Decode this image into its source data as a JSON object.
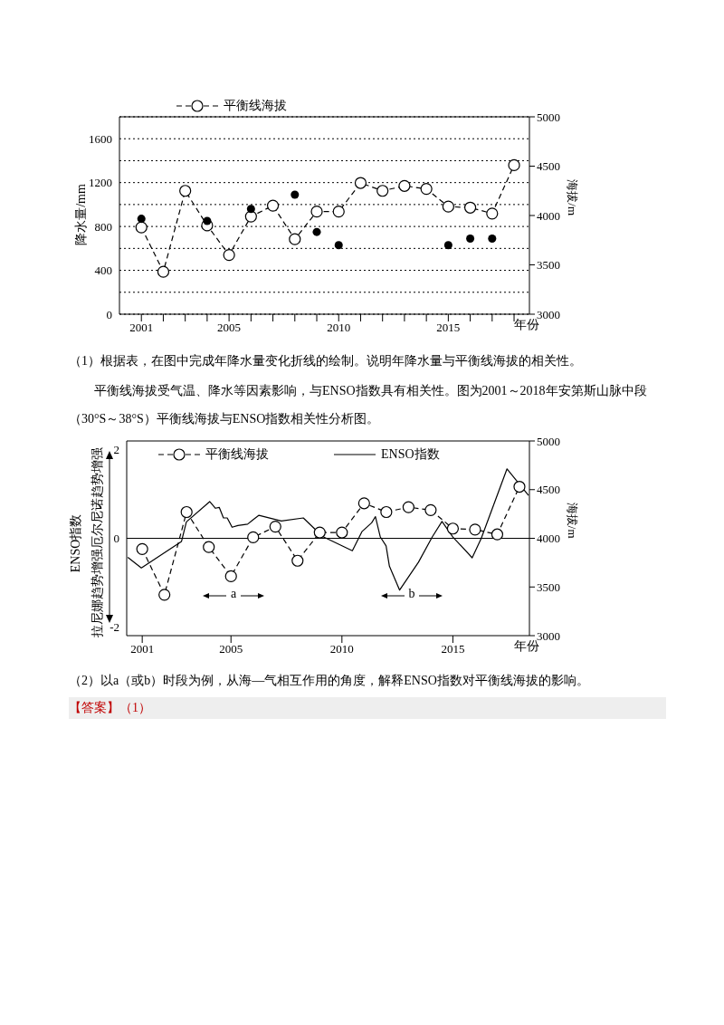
{
  "chart_data": [
    {
      "type": "line",
      "x": [
        2001,
        2002,
        2003,
        2004,
        2005,
        2006,
        2007,
        2008,
        2009,
        2010,
        2011,
        2012,
        2013,
        2014,
        2015,
        2016,
        2017,
        2018
      ],
      "series": [
        {
          "name": "平衡线海拔",
          "color": "#000000",
          "axis": "y2",
          "line_style": "dashed",
          "marker": "circle",
          "values": [
            3880,
            3430,
            4250,
            3900,
            3600,
            3990,
            4100,
            3760,
            4040,
            4040,
            4330,
            4250,
            4300,
            4270,
            4090,
            4080,
            4020,
            4510
          ]
        },
        {
          "type": "scatter",
          "color": "#000000",
          "marker": "circle",
          "values": [
            870,
            null,
            null,
            850,
            null,
            960,
            null,
            1090,
            750,
            630,
            null,
            null,
            null,
            null,
            630,
            690,
            690,
            null
          ]
        }
      ],
      "xlabel": "年份",
      "ylabel": "降水量/mm",
      "y2label": "海拔/m",
      "xlim": [
        2000,
        2018.7
      ],
      "xticks": [
        2001,
        {
          "value": 2002,
          "label": null
        },
        {
          "value": 2003,
          "label": null
        },
        {
          "value": 2004,
          "label": null
        },
        2005,
        {
          "value": 2006,
          "label": null
        },
        {
          "value": 2007,
          "label": null
        },
        {
          "value": 2008,
          "label": null
        },
        {
          "value": 2009,
          "label": null
        },
        2010,
        {
          "value": 2011,
          "label": null
        },
        {
          "value": 2012,
          "label": null
        },
        {
          "value": 2013,
          "label": null
        },
        {
          "value": 2014,
          "label": null
        },
        2015,
        {
          "value": 2016,
          "label": null
        },
        {
          "value": 2017,
          "label": null
        },
        {
          "value": 2018,
          "label": null
        }
      ],
      "ylim": [
        0,
        1800
      ],
      "yticks": [
        0,
        {
          "value": 200,
          "label": null
        },
        400,
        {
          "value": 600,
          "label": null
        },
        800,
        {
          "value": 1000,
          "label": null
        },
        1200,
        {
          "value": 1400,
          "label": null
        },
        1600
      ],
      "y2lim": [
        3000,
        5000
      ],
      "y2ticks": [
        3000,
        3500,
        4000,
        4500,
        5000
      ],
      "grid": "y",
      "legend": "top",
      "annotations": [
        "（1）根据表，在图中完成年降水量变化折线的绘制。说明年降水量与平衡线海拔的相关性。",
        "平衡线海拔受气温、降水等因素影响，与ENSO指数具有相关性。图为2001～2018年安第斯山脉中段（30°S～38°S）平衡线海拔与ENSO指数相关性分析图。"
      ]
    },
    {
      "type": "line",
      "x": [
        2001,
        2002,
        2003,
        2004,
        2005,
        2006,
        2007,
        2008,
        2009,
        2010,
        2011,
        2012,
        2013,
        2014,
        2015,
        2016,
        2017,
        2018
      ],
      "series": [
        {
          "name": "平衡线海拔",
          "color": "#000000",
          "axis": "y2",
          "line_style": "dashed",
          "marker": "circle",
          "values": [
            3890,
            3420,
            4270,
            3910,
            3610,
            4010,
            4120,
            3770,
            4060,
            4060,
            4360,
            4270,
            4320,
            4290,
            4100,
            4090,
            4040,
            4530
          ]
        },
        {
          "name": "ENSO指数",
          "color": "#000000",
          "line_style": "solid",
          "marker": "none",
          "x": [
            2000.35,
            2000.96,
            2002.77,
            2002.99,
            2004.04,
            2004.3,
            2004.47,
            2004.66,
            2004.83,
            2005.05,
            2005.31,
            2005.75,
            2005.97,
            2006.26,
            2007.27,
            2008.26,
            2009.13,
            2010.47,
            2010.9,
            2011.34,
            2011.51,
            2011.73,
            2011.99,
            2012.14,
            2012.6,
            2013.45,
            2014.07,
            2014.51,
            2015,
            2015.87,
            2016.28,
            2017.44,
            2018.41
          ],
          "values": [
            -0.43,
            -0.67,
            -0.07,
            0.37,
            0.83,
            0.68,
            0.7,
            0.46,
            0.46,
            0.25,
            0.29,
            0.32,
            0.41,
            0.52,
            0.39,
            0.46,
            0.04,
            -0.28,
            0.15,
            0.35,
            0.49,
            0.03,
            -0.17,
            -0.63,
            -1.17,
            -0.54,
            0.03,
            0.38,
            0.03,
            -0.44,
            0,
            1.57,
            0.97
          ]
        }
      ],
      "xlabel": "年份",
      "ylabel": "ENSO指数",
      "y2label": "海拔/m",
      "xlim": [
        2000.3,
        2018.45
      ],
      "xticks": [
        2001,
        2005,
        2010,
        2015
      ],
      "ylim": [
        -2.2,
        2.2
      ],
      "yticks": [
        -2,
        0,
        2
      ],
      "y2lim": [
        3000,
        5000
      ],
      "y2ticks": [
        3000,
        3500,
        4000,
        4500,
        5000
      ],
      "legend": "top",
      "ref_lines": [
        {
          "axis": "y",
          "value": 0,
          "color": "#000000"
        }
      ],
      "annotations": [
        "厄尔尼诺趋势增强",
        "拉尼娜趋势增强",
        "a",
        "b",
        "（2）以a（或b）时段为例，从海—气相互作用的角度，解释ENSO指数对平衡线海拔的影响。",
        "【答案】（1）"
      ]
    }
  ]
}
